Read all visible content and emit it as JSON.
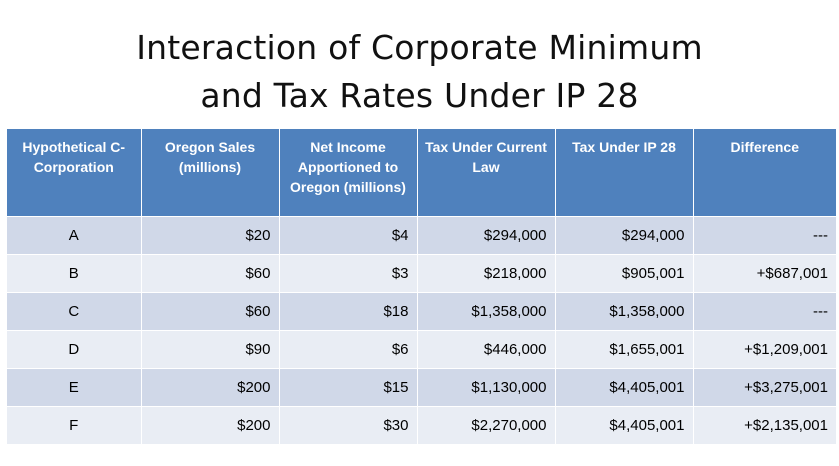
{
  "title": {
    "line1": "Interaction of Corporate Minimum",
    "line2": "and Tax Rates Under IP 28"
  },
  "table": {
    "headers": [
      "Hypothetical C-Corporation",
      "Oregon Sales (millions)",
      "Net Income Apportioned to Oregon (millions)",
      "Tax Under Current Law",
      "Tax Under IP 28",
      "Difference"
    ],
    "rows": [
      [
        "A",
        "$20",
        "$4",
        "$294,000",
        "$294,000",
        "---"
      ],
      [
        "B",
        "$60",
        "$3",
        "$218,000",
        "$905,001",
        "+$687,001"
      ],
      [
        "C",
        "$60",
        "$18",
        "$1,358,000",
        "$1,358,000",
        "---"
      ],
      [
        "D",
        "$90",
        "$6",
        "$446,000",
        "$1,655,001",
        "+$1,209,001"
      ],
      [
        "E",
        "$200",
        "$15",
        "$1,130,000",
        "$4,405,001",
        "+$3,275,001"
      ],
      [
        "F",
        "$200",
        "$30",
        "$2,270,000",
        "$4,405,001",
        "+$2,135,001"
      ]
    ]
  },
  "colors": {
    "header_bg": "#4f81bd",
    "row_odd_bg": "#d0d8e8",
    "row_even_bg": "#e9edf4"
  }
}
